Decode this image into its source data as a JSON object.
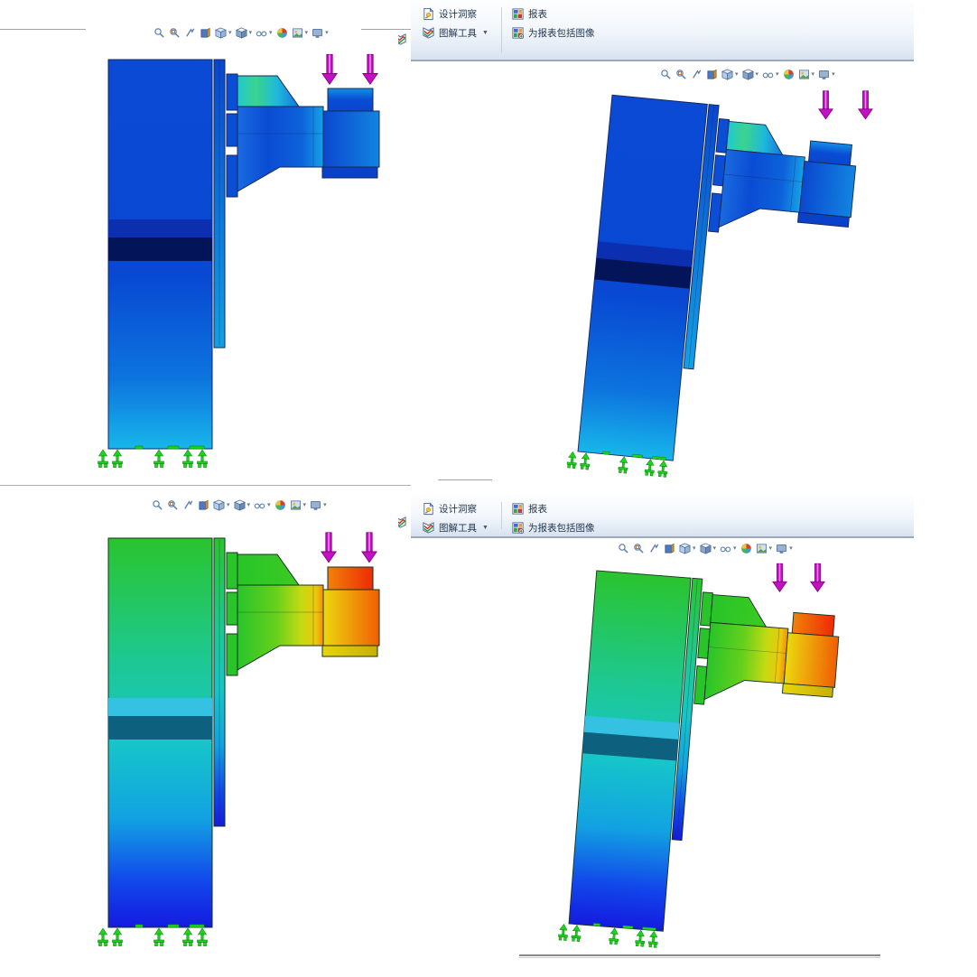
{
  "ribbon": {
    "design_insight_label": "设计洞察",
    "plot_tools_label": "图解工具",
    "report_label": "报表",
    "include_image_label": "为报表包括图像"
  },
  "viewbar": {
    "icons": [
      {
        "name": "zoom-to-fit-icon",
        "type": "zoomfit",
        "dropdown": false
      },
      {
        "name": "zoom-to-area-icon",
        "type": "zoomarea",
        "dropdown": false
      },
      {
        "name": "previous-view-icon",
        "type": "prevview",
        "dropdown": false
      },
      {
        "name": "section-view-icon",
        "type": "section",
        "dropdown": false
      },
      {
        "name": "view-orientation-icon",
        "type": "orientation",
        "dropdown": true
      },
      {
        "name": "display-style-icon",
        "type": "displaystyle",
        "dropdown": true
      },
      {
        "name": "hide-show-items-icon",
        "type": "hideshow",
        "dropdown": true
      },
      {
        "name": "edit-appearance-icon",
        "type": "appearance",
        "dropdown": false
      },
      {
        "name": "apply-scene-icon",
        "type": "scene",
        "dropdown": true
      },
      {
        "name": "view-settings-icon",
        "type": "viewsettings",
        "dropdown": true
      }
    ]
  },
  "viewports": [
    {
      "id": "top-left",
      "result": "stress",
      "state": "undeformed"
    },
    {
      "id": "top-right",
      "result": "stress",
      "state": "deformed"
    },
    {
      "id": "bottom-left",
      "result": "displacement",
      "state": "undeformed"
    },
    {
      "id": "bottom-right",
      "result": "displacement",
      "state": "deformed"
    }
  ],
  "colors": {
    "load_arrow": "#c410c4",
    "load_arrow_outline": "#7e007e",
    "fixture_symbol": "#1ed41e",
    "stress_palette": [
      "#04135c",
      "#0b2fae",
      "#0848d2",
      "#17b6ea",
      "#2fd096"
    ],
    "displacement_palette": [
      "#141ae0",
      "#16c6c8",
      "#2ac42e",
      "#c6da12",
      "#eec60e",
      "#ee2a04"
    ],
    "ribbon_separator": "#9aa8ba"
  }
}
